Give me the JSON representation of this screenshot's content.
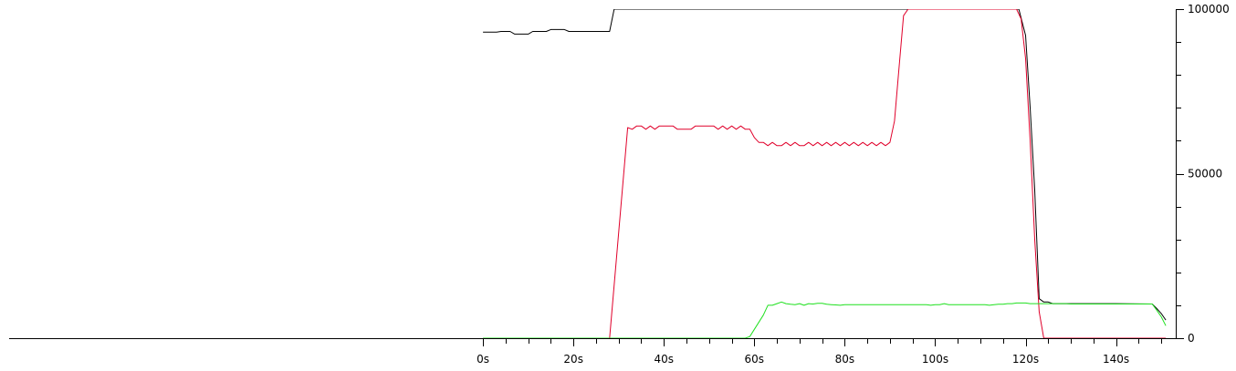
{
  "chart_data": {
    "type": "line",
    "title": "",
    "xlabel": "",
    "ylabel": "",
    "xlim": [
      -104.8,
      153.2
    ],
    "ylim": [
      0,
      100000
    ],
    "x_tick_labels": [
      {
        "value": 0,
        "label": "0s"
      },
      {
        "value": 20,
        "label": "20s"
      },
      {
        "value": 40,
        "label": "40s"
      },
      {
        "value": 60,
        "label": "60s"
      },
      {
        "value": 80,
        "label": "80s"
      },
      {
        "value": 100,
        "label": "100s"
      },
      {
        "value": 120,
        "label": "120s"
      },
      {
        "value": 140,
        "label": "140s"
      }
    ],
    "x_minor_ticks": [
      0,
      5,
      10,
      15,
      20,
      25,
      30,
      35,
      40,
      45,
      50,
      55,
      60,
      65,
      70,
      75,
      80,
      85,
      90,
      95,
      100,
      105,
      110,
      115,
      120,
      125,
      130,
      135,
      140,
      145,
      150
    ],
    "y_tick_labels": [
      {
        "value": 0,
        "label": "0"
      },
      {
        "value": 50000,
        "label": "50000"
      },
      {
        "value": 100000,
        "label": "100000"
      }
    ],
    "y_minor_ticks": [
      0,
      10000,
      20000,
      30000,
      40000,
      50000,
      60000,
      70000,
      80000,
      90000,
      100000
    ],
    "y_axis_side": "right",
    "grid": false,
    "legend": "none",
    "series": [
      {
        "color": "#000000",
        "points": [
          [
            0,
            93000
          ],
          [
            3,
            93000
          ],
          [
            4,
            93200
          ],
          [
            6,
            93200
          ],
          [
            7,
            92400
          ],
          [
            10,
            92400
          ],
          [
            11,
            93200
          ],
          [
            14,
            93200
          ],
          [
            15,
            93800
          ],
          [
            18,
            93800
          ],
          [
            19,
            93200
          ],
          [
            28,
            93200
          ],
          [
            29,
            100000
          ],
          [
            118.5,
            100000
          ],
          [
            120,
            92000
          ],
          [
            121,
            70000
          ],
          [
            122,
            45000
          ],
          [
            123,
            12000
          ],
          [
            124,
            11000
          ],
          [
            125,
            11000
          ],
          [
            126,
            10500
          ],
          [
            130,
            10500
          ],
          [
            140,
            10500
          ],
          [
            148,
            10400
          ],
          [
            149,
            9000
          ],
          [
            150,
            7500
          ],
          [
            151,
            5500
          ]
        ]
      },
      {
        "color": "#e0002a",
        "points": [
          [
            0,
            0
          ],
          [
            28,
            0
          ],
          [
            32,
            64000
          ],
          [
            33,
            63500
          ],
          [
            34,
            64500
          ],
          [
            35,
            64500
          ],
          [
            36,
            63500
          ],
          [
            37,
            64500
          ],
          [
            38,
            63500
          ],
          [
            39,
            64500
          ],
          [
            42,
            64500
          ],
          [
            43,
            63500
          ],
          [
            46,
            63500
          ],
          [
            47,
            64500
          ],
          [
            51,
            64500
          ],
          [
            52,
            63500
          ],
          [
            53,
            64500
          ],
          [
            54,
            63500
          ],
          [
            55,
            64500
          ],
          [
            56,
            63500
          ],
          [
            57,
            64500
          ],
          [
            58,
            63500
          ],
          [
            59,
            63500
          ],
          [
            60,
            61000
          ],
          [
            61,
            59500
          ],
          [
            62,
            59500
          ],
          [
            63,
            58500
          ],
          [
            64,
            59500
          ],
          [
            65,
            58500
          ],
          [
            66,
            58500
          ],
          [
            67,
            59500
          ],
          [
            68,
            58500
          ],
          [
            69,
            59500
          ],
          [
            70,
            58500
          ],
          [
            71,
            58500
          ],
          [
            72,
            59500
          ],
          [
            73,
            58500
          ],
          [
            74,
            59500
          ],
          [
            75,
            58500
          ],
          [
            76,
            59500
          ],
          [
            77,
            58500
          ],
          [
            78,
            59500
          ],
          [
            79,
            58500
          ],
          [
            80,
            59500
          ],
          [
            81,
            58500
          ],
          [
            82,
            59500
          ],
          [
            83,
            58500
          ],
          [
            84,
            59500
          ],
          [
            85,
            58500
          ],
          [
            86,
            59500
          ],
          [
            87,
            58500
          ],
          [
            88,
            59500
          ],
          [
            89,
            58500
          ],
          [
            90,
            59500
          ],
          [
            91,
            66000
          ],
          [
            92,
            82000
          ],
          [
            93,
            98000
          ],
          [
            94,
            100000
          ],
          [
            118,
            100000
          ],
          [
            119,
            97000
          ],
          [
            120,
            85000
          ],
          [
            121,
            60000
          ],
          [
            122,
            30000
          ],
          [
            123,
            8000
          ],
          [
            124,
            0
          ],
          [
            151,
            0
          ]
        ]
      },
      {
        "color": "#1fe01f",
        "points": [
          [
            0,
            0
          ],
          [
            58,
            0
          ],
          [
            59,
            500
          ],
          [
            62,
            7000
          ],
          [
            63,
            10000
          ],
          [
            64,
            10000
          ],
          [
            65,
            10500
          ],
          [
            66,
            11000
          ],
          [
            67,
            10500
          ],
          [
            68,
            10300
          ],
          [
            69,
            10200
          ],
          [
            70,
            10500
          ],
          [
            71,
            10000
          ],
          [
            72,
            10500
          ],
          [
            73,
            10400
          ],
          [
            74,
            10600
          ],
          [
            75,
            10600
          ],
          [
            76,
            10300
          ],
          [
            77,
            10200
          ],
          [
            78,
            10100
          ],
          [
            79,
            10000
          ],
          [
            80,
            10200
          ],
          [
            81,
            10200
          ],
          [
            82,
            10200
          ],
          [
            83,
            10200
          ],
          [
            84,
            10200
          ],
          [
            85,
            10200
          ],
          [
            86,
            10200
          ],
          [
            87,
            10200
          ],
          [
            88,
            10200
          ],
          [
            89,
            10200
          ],
          [
            90,
            10200
          ],
          [
            91,
            10200
          ],
          [
            92,
            10200
          ],
          [
            93,
            10200
          ],
          [
            94,
            10200
          ],
          [
            95,
            10200
          ],
          [
            96,
            10200
          ],
          [
            97,
            10200
          ],
          [
            98,
            10200
          ],
          [
            99,
            10000
          ],
          [
            100,
            10200
          ],
          [
            101,
            10200
          ],
          [
            102,
            10500
          ],
          [
            103,
            10200
          ],
          [
            104,
            10200
          ],
          [
            105,
            10200
          ],
          [
            106,
            10200
          ],
          [
            107,
            10200
          ],
          [
            108,
            10200
          ],
          [
            109,
            10200
          ],
          [
            110,
            10200
          ],
          [
            111,
            10200
          ],
          [
            112,
            10000
          ],
          [
            113,
            10200
          ],
          [
            114,
            10300
          ],
          [
            115,
            10300
          ],
          [
            116,
            10500
          ],
          [
            117,
            10500
          ],
          [
            118,
            10700
          ],
          [
            119,
            10700
          ],
          [
            120,
            10700
          ],
          [
            121,
            10500
          ],
          [
            122,
            10500
          ],
          [
            123,
            10500
          ],
          [
            124,
            10500
          ],
          [
            125,
            10500
          ],
          [
            126,
            10500
          ],
          [
            127,
            10500
          ],
          [
            128,
            10500
          ],
          [
            129,
            10500
          ],
          [
            130,
            10400
          ],
          [
            131,
            10400
          ],
          [
            132,
            10400
          ],
          [
            133,
            10400
          ],
          [
            134,
            10400
          ],
          [
            135,
            10400
          ],
          [
            136,
            10400
          ],
          [
            137,
            10400
          ],
          [
            138,
            10400
          ],
          [
            139,
            10400
          ],
          [
            140,
            10400
          ],
          [
            141,
            10400
          ],
          [
            142,
            10400
          ],
          [
            143,
            10400
          ],
          [
            144,
            10400
          ],
          [
            145,
            10400
          ],
          [
            146,
            10400
          ],
          [
            147,
            10400
          ],
          [
            148,
            10400
          ],
          [
            149,
            8500
          ],
          [
            150,
            6500
          ],
          [
            151,
            3800
          ]
        ]
      }
    ]
  }
}
